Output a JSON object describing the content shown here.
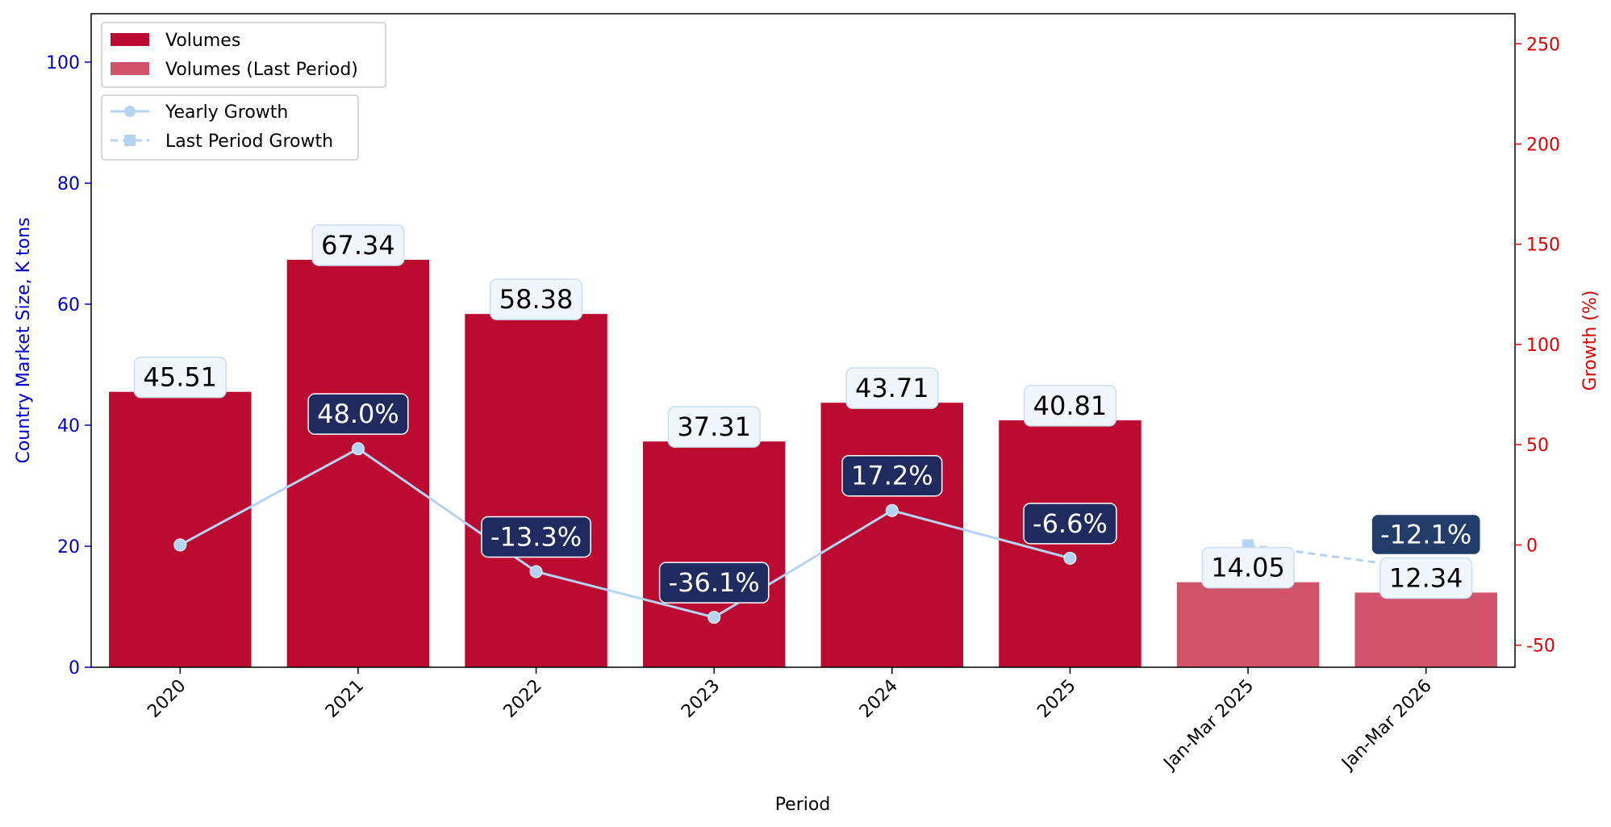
{
  "chart_data": {
    "type": "bar",
    "categories": [
      "2020",
      "2021",
      "2022",
      "2023",
      "2024",
      "2025",
      "Jan-Mar 2025",
      "Jan-Mar 2026"
    ],
    "xlabel": "Period",
    "ylabel_left": "Country Market Size, K tons",
    "ylabel_right": "Growth (%)",
    "ylim_left": [
      0,
      108
    ],
    "ylim_right": [
      -61,
      265
    ],
    "yticks_left": [
      0,
      20,
      40,
      60,
      80,
      100
    ],
    "yticks_right": [
      -50,
      0,
      50,
      100,
      150,
      200,
      250
    ],
    "grid": false,
    "series": [
      {
        "name": "Volumes",
        "kind": "bar",
        "color": "#BC0B31",
        "values": [
          45.51,
          67.34,
          58.38,
          37.31,
          43.71,
          40.81,
          null,
          null
        ],
        "labels": [
          "45.51",
          "67.34",
          "58.38",
          "37.31",
          "43.71",
          "40.81",
          "",
          ""
        ]
      },
      {
        "name": "Volumes (Last Period)",
        "kind": "bar",
        "color": "#D0526B",
        "values": [
          null,
          null,
          null,
          null,
          null,
          null,
          14.05,
          12.34
        ],
        "labels": [
          "",
          "",
          "",
          "",
          "",
          "",
          "14.05",
          "12.34"
        ]
      },
      {
        "name": "Yearly Growth",
        "kind": "line",
        "axis": "right",
        "color": "#B5D4F4",
        "marker": "circle",
        "values": [
          0.0,
          48.0,
          -13.3,
          -36.1,
          17.2,
          -6.6,
          null,
          null
        ],
        "labels": [
          "",
          "48.0%",
          "-13.3%",
          "-36.1%",
          "17.2%",
          "-6.6%",
          "",
          ""
        ]
      },
      {
        "name": "Last Period Growth",
        "kind": "line",
        "axis": "right",
        "color": "#B5D4F4",
        "marker": "square",
        "dashed": true,
        "values": [
          null,
          null,
          null,
          null,
          null,
          null,
          0.0,
          -12.1
        ],
        "labels": [
          "",
          "",
          "",
          "",
          "",
          "",
          "",
          "-12.1%"
        ]
      }
    ],
    "legend": {
      "bars_placement": "top-left",
      "lines_placement": "top-left"
    }
  }
}
